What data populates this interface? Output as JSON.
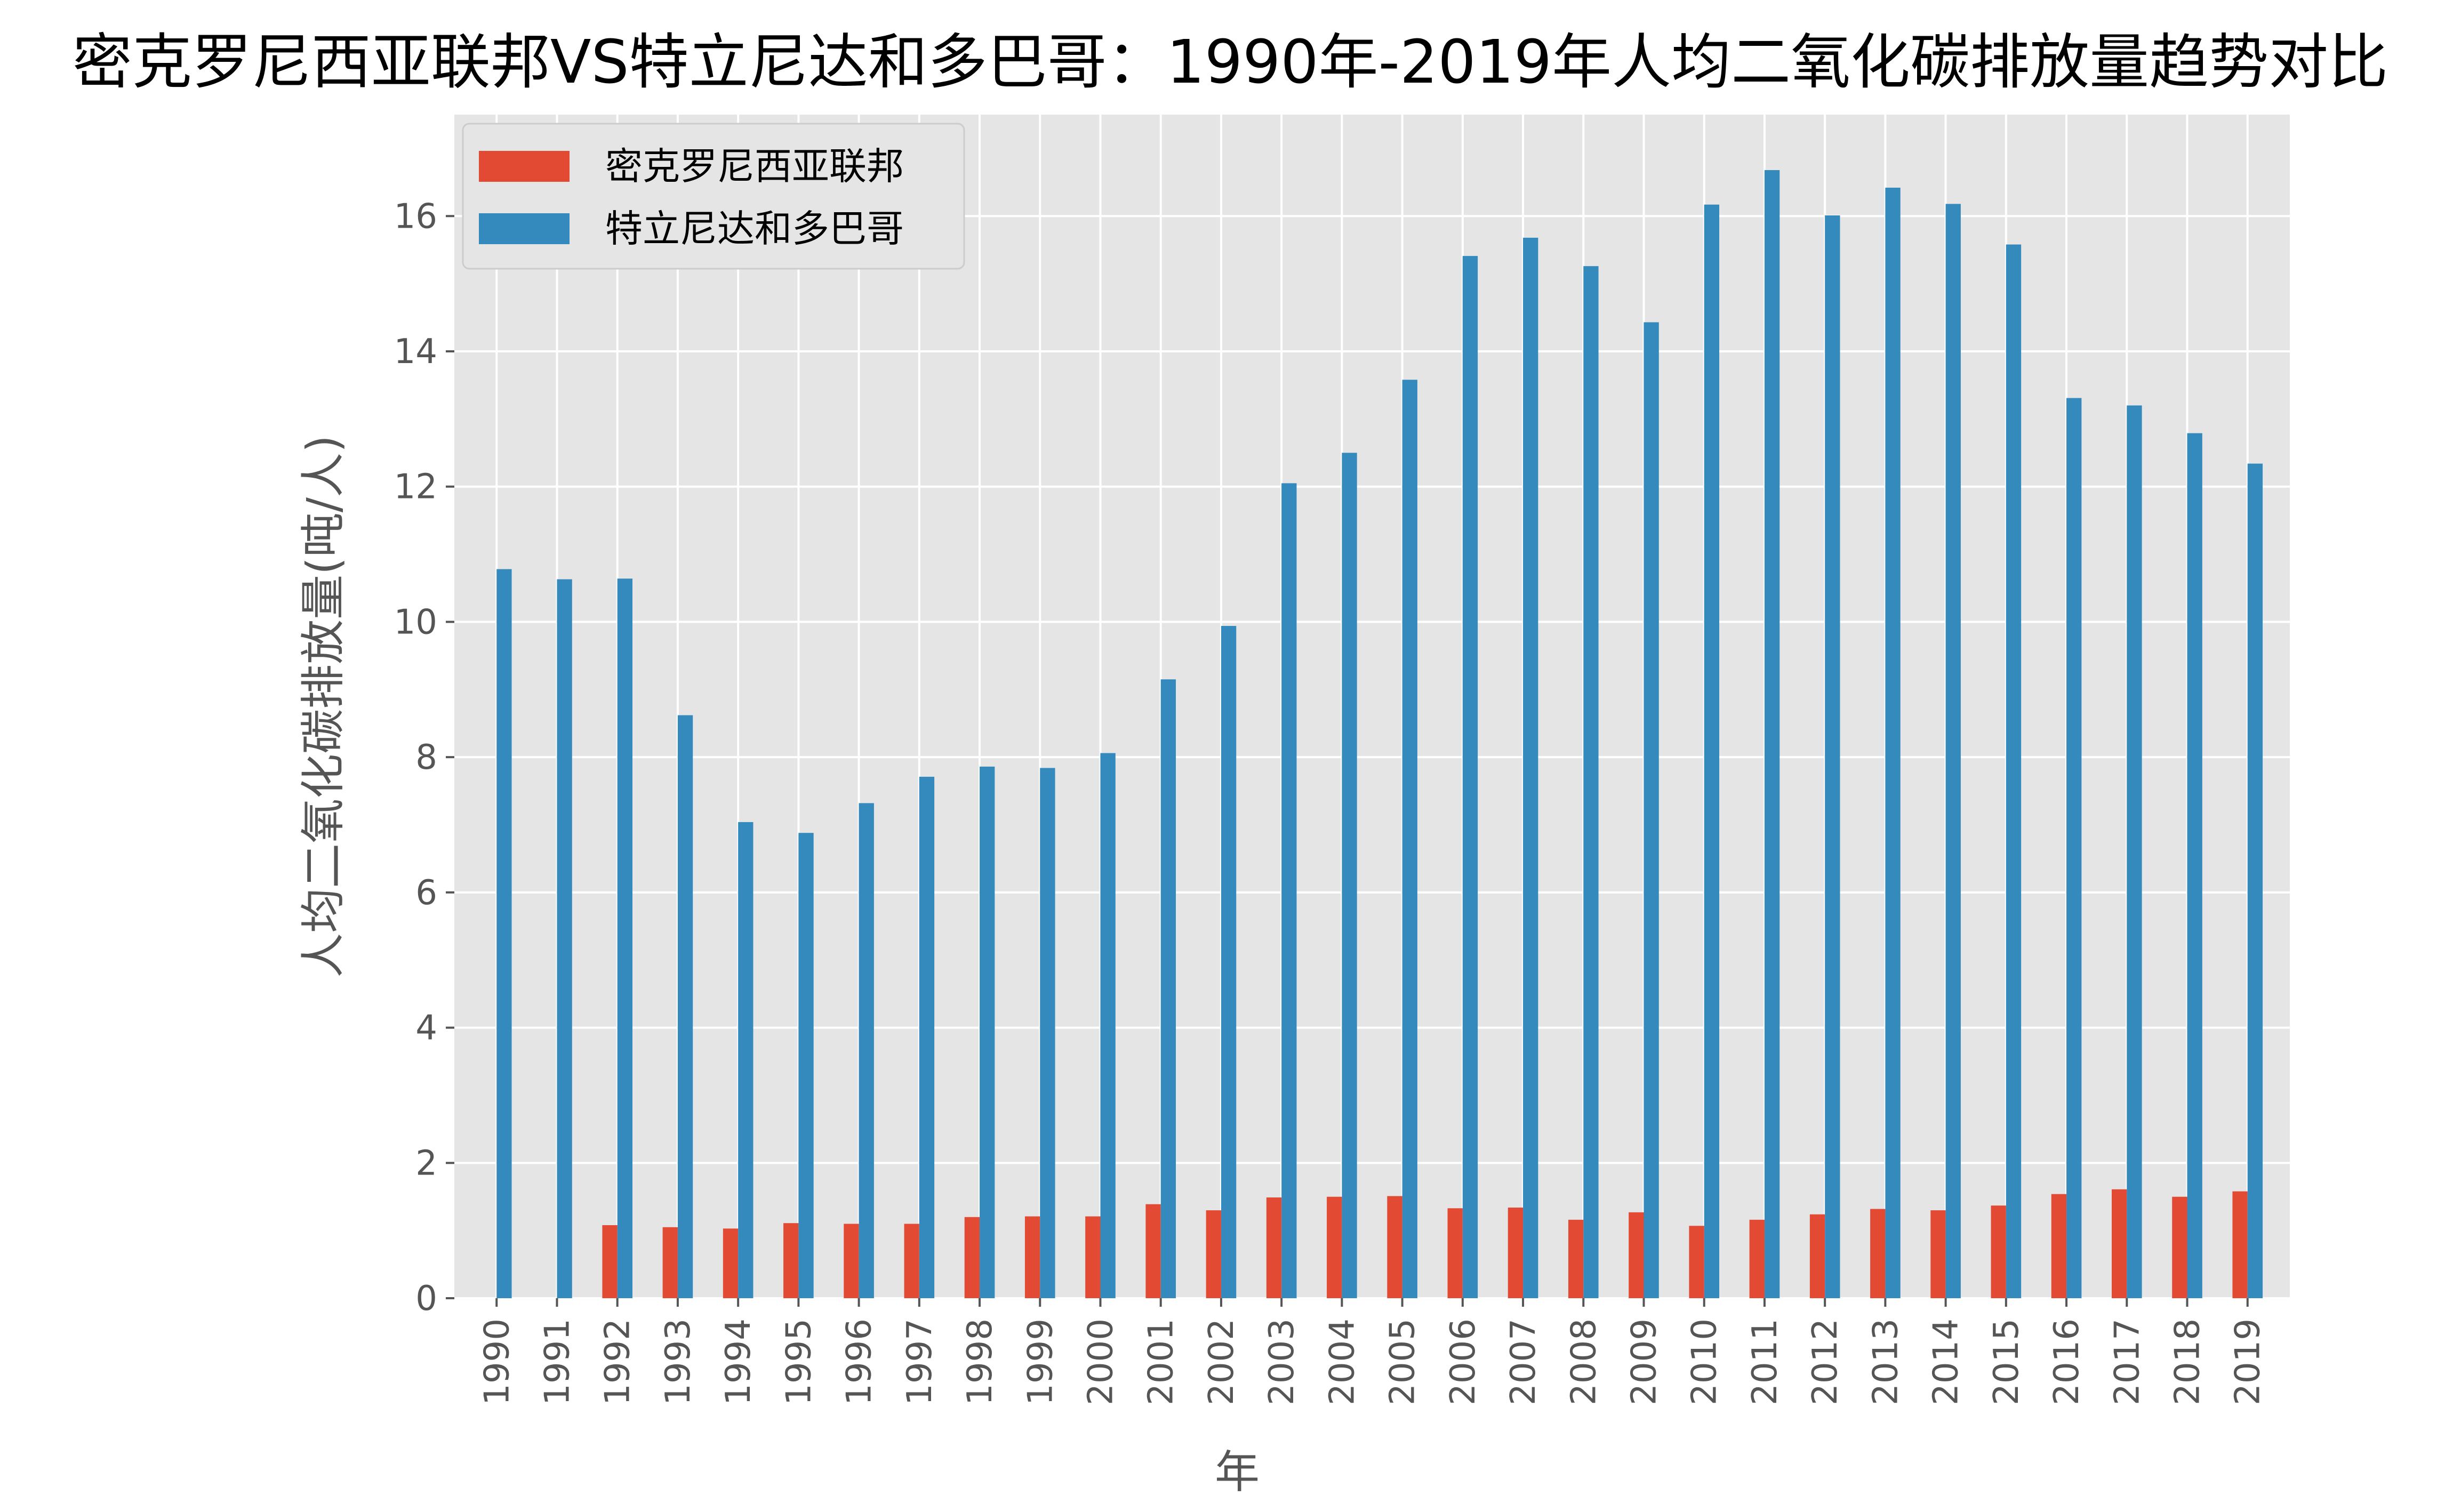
{
  "chart_data": {
    "type": "bar",
    "title": "密克罗尼西亚联邦VS特立尼达和多巴哥：1990年-2019年人均二氧化碳排放量趋势对比",
    "xlabel": "年",
    "ylabel": "人均二氧化碳排放量(吨/人)",
    "ylim": [
      0,
      17.5
    ],
    "yticks": [
      "0",
      "2",
      "4",
      "6",
      "8",
      "10",
      "12",
      "14",
      "16"
    ],
    "grid": true,
    "legend_position": "top-left",
    "categories": [
      "1990",
      "1991",
      "1992",
      "1993",
      "1994",
      "1995",
      "1996",
      "1997",
      "1998",
      "1999",
      "2000",
      "2001",
      "2002",
      "2003",
      "2004",
      "2005",
      "2006",
      "2007",
      "2008",
      "2009",
      "2010",
      "2011",
      "2012",
      "2013",
      "2014",
      "2015",
      "2016",
      "2017",
      "2018",
      "2019"
    ],
    "series": [
      {
        "name": "密克罗尼西亚联邦",
        "color": "#E24A33",
        "values": [
          null,
          null,
          1.08,
          1.05,
          1.03,
          1.11,
          1.1,
          1.1,
          1.2,
          1.21,
          1.21,
          1.39,
          1.3,
          1.49,
          1.5,
          1.51,
          1.33,
          1.34,
          1.16,
          1.27,
          1.07,
          1.16,
          1.24,
          1.32,
          1.3,
          1.37,
          1.54,
          1.61,
          1.5,
          1.58
        ]
      },
      {
        "name": "特立尼达和多巴哥",
        "color": "#348ABD",
        "values": [
          10.78,
          10.63,
          10.64,
          8.62,
          7.04,
          6.88,
          7.32,
          7.71,
          7.86,
          7.84,
          8.06,
          9.15,
          9.94,
          12.05,
          12.5,
          13.58,
          15.41,
          15.68,
          15.26,
          14.43,
          16.17,
          16.68,
          16.01,
          16.42,
          16.18,
          15.58,
          13.31,
          13.2,
          12.79,
          12.34
        ]
      }
    ]
  }
}
